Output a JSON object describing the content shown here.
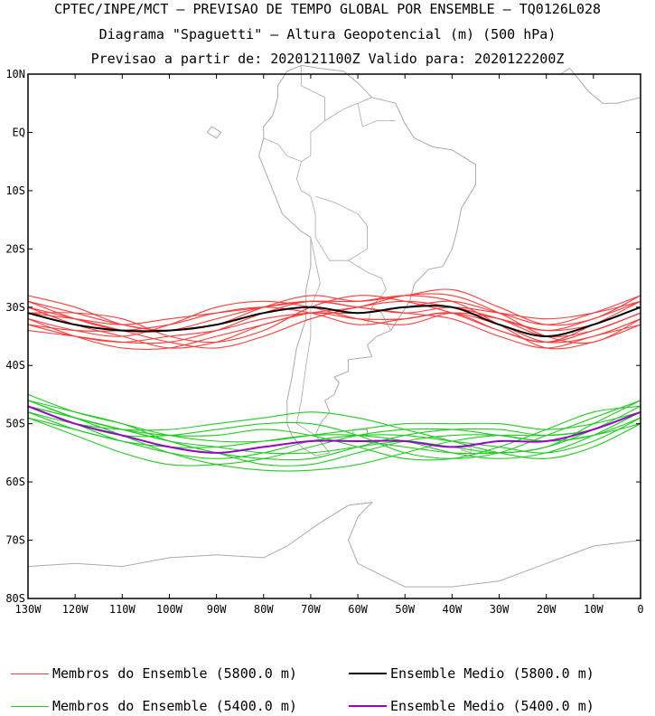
{
  "title": {
    "line1": "CPTEC/INPE/MCT – PREVISAO DE TEMPO GLOBAL POR ENSEMBLE – TQ0126L028",
    "line2": "Diagrama \"Spaguetti\" – Altura Geopotencial (m) (500 hPa)",
    "line3": "Previsao a partir de: 2020121100Z  Valido para: 2020122200Z"
  },
  "chart_data": {
    "type": "line",
    "projection": "map lat/lon",
    "xlim": [
      -130,
      0
    ],
    "ylim": [
      -80,
      10
    ],
    "x_ticks": [
      -130,
      -120,
      -110,
      -100,
      -90,
      -80,
      -70,
      -60,
      -50,
      -40,
      -30,
      -20,
      -10,
      0
    ],
    "x_tick_labels": [
      "130W",
      "120W",
      "110W",
      "100W",
      "90W",
      "80W",
      "70W",
      "60W",
      "50W",
      "40W",
      "30W",
      "20W",
      "10W",
      "0"
    ],
    "y_ticks": [
      10,
      0,
      -10,
      -20,
      -30,
      -40,
      -50,
      -60,
      -70,
      -80
    ],
    "y_tick_labels": [
      "10N",
      "EQ",
      "10S",
      "20S",
      "30S",
      "40S",
      "50S",
      "60S",
      "70S",
      "80S"
    ],
    "x": [
      -130,
      -120,
      -110,
      -100,
      -90,
      -80,
      -70,
      -60,
      -50,
      -40,
      -30,
      -20,
      -10,
      0
    ],
    "series": [
      {
        "name": "Ensemble Medio (5800.0 m)",
        "color": "#000000",
        "values": [
          -31,
          -33,
          -34,
          -34,
          -33,
          -31,
          -30,
          -31,
          -30,
          -30,
          -33,
          -35,
          -33,
          -30
        ]
      },
      {
        "name": "Ensemble Medio (5400.0 m)",
        "color": "#9900cc",
        "values": [
          -47,
          -50,
          -52,
          -54,
          -55,
          -54,
          -53,
          -53,
          -53,
          -54,
          -53,
          -53,
          -51,
          -48
        ]
      },
      {
        "name": "Membros do Ensemble (5800.0 m)",
        "color": "#ff3b3b",
        "members": [
          [
            -29,
            -31,
            -33,
            -34,
            -33,
            -30,
            -28,
            -29,
            -28,
            -27,
            -30,
            -33,
            -32,
            -28
          ],
          [
            -32,
            -35,
            -37,
            -37,
            -35,
            -33,
            -31,
            -32,
            -32,
            -31,
            -34,
            -36,
            -34,
            -31
          ],
          [
            -30,
            -32,
            -34,
            -36,
            -37,
            -35,
            -32,
            -30,
            -29,
            -30,
            -32,
            -35,
            -34,
            -31
          ],
          [
            -33,
            -34,
            -34,
            -33,
            -31,
            -30,
            -31,
            -33,
            -32,
            -31,
            -33,
            -36,
            -35,
            -32
          ],
          [
            -31,
            -31,
            -32,
            -35,
            -36,
            -34,
            -30,
            -28,
            -29,
            -31,
            -34,
            -36,
            -33,
            -29
          ],
          [
            -34,
            -35,
            -36,
            -36,
            -34,
            -31,
            -29,
            -30,
            -31,
            -32,
            -35,
            -37,
            -35,
            -33
          ],
          [
            -28,
            -30,
            -33,
            -34,
            -33,
            -31,
            -30,
            -31,
            -30,
            -29,
            -31,
            -33,
            -31,
            -28
          ],
          [
            -32,
            -34,
            -35,
            -33,
            -30,
            -29,
            -30,
            -32,
            -33,
            -31,
            -32,
            -34,
            -33,
            -30
          ],
          [
            -30,
            -33,
            -35,
            -37,
            -36,
            -33,
            -31,
            -30,
            -28,
            -28,
            -31,
            -35,
            -36,
            -32
          ],
          [
            -33,
            -35,
            -36,
            -35,
            -34,
            -32,
            -31,
            -31,
            -30,
            -30,
            -32,
            -34,
            -32,
            -29
          ],
          [
            -31,
            -32,
            -33,
            -32,
            -31,
            -30,
            -29,
            -29,
            -28,
            -29,
            -33,
            -37,
            -36,
            -33
          ],
          [
            -29,
            -32,
            -34,
            -34,
            -32,
            -30,
            -29,
            -30,
            -31,
            -30,
            -31,
            -32,
            -31,
            -29
          ]
        ]
      },
      {
        "name": "Membros do Ensemble (5400.0 m)",
        "color": "#22cc22",
        "members": [
          [
            -46,
            -49,
            -51,
            -53,
            -54,
            -55,
            -55,
            -54,
            -53,
            -54,
            -55,
            -54,
            -51,
            -47
          ],
          [
            -48,
            -51,
            -53,
            -55,
            -56,
            -55,
            -53,
            -52,
            -52,
            -53,
            -54,
            -55,
            -53,
            -49
          ],
          [
            -47,
            -50,
            -52,
            -52,
            -51,
            -50,
            -50,
            -52,
            -55,
            -56,
            -55,
            -52,
            -49,
            -46
          ],
          [
            -46,
            -48,
            -50,
            -53,
            -55,
            -57,
            -57,
            -55,
            -53,
            -52,
            -52,
            -53,
            -52,
            -49
          ],
          [
            -49,
            -52,
            -55,
            -57,
            -57,
            -56,
            -54,
            -52,
            -51,
            -51,
            -52,
            -53,
            -52,
            -50
          ],
          [
            -47,
            -49,
            -51,
            -52,
            -52,
            -51,
            -52,
            -54,
            -56,
            -56,
            -54,
            -51,
            -48,
            -47
          ],
          [
            -46,
            -49,
            -52,
            -55,
            -57,
            -58,
            -58,
            -57,
            -55,
            -53,
            -52,
            -52,
            -51,
            -48
          ],
          [
            -48,
            -50,
            -51,
            -51,
            -50,
            -49,
            -48,
            -49,
            -51,
            -53,
            -55,
            -56,
            -54,
            -50
          ],
          [
            -47,
            -50,
            -53,
            -54,
            -55,
            -54,
            -53,
            -53,
            -54,
            -55,
            -55,
            -54,
            -50,
            -46
          ],
          [
            -45,
            -48,
            -50,
            -52,
            -53,
            -53,
            -52,
            -51,
            -50,
            -50,
            -50,
            -51,
            -50,
            -48
          ],
          [
            -49,
            -51,
            -53,
            -54,
            -54,
            -53,
            -52,
            -52,
            -53,
            -55,
            -56,
            -55,
            -52,
            -48
          ],
          [
            -47,
            -49,
            -51,
            -53,
            -55,
            -56,
            -56,
            -54,
            -52,
            -51,
            -51,
            -52,
            -51,
            -48
          ]
        ]
      }
    ]
  },
  "legend": [
    {
      "label": "Membros do Ensemble (5800.0 m)",
      "color": "#ff3b3b",
      "width": 1
    },
    {
      "label": "Ensemble Medio (5800.0 m)",
      "color": "#000000",
      "width": 2
    },
    {
      "label": "Membros do Ensemble (5400.0 m)",
      "color": "#22cc22",
      "width": 1
    },
    {
      "label": "Ensemble Medio (5400.0 m)",
      "color": "#9900cc",
      "width": 2
    }
  ],
  "colors": {
    "coastline": "#aaaaaa",
    "frame": "#000000"
  }
}
